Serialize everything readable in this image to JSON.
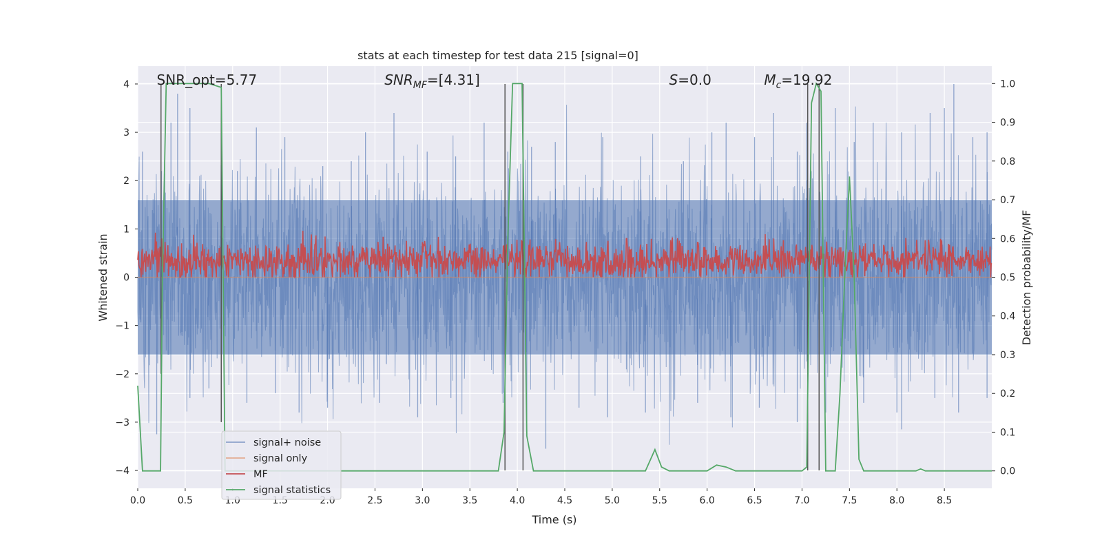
{
  "chart_data": {
    "type": "line",
    "title": "stats at each timestep for test data 215 [signal=0]",
    "xlabel": "Time (s)",
    "ylabel": "Whitened strain",
    "y2label": "Detection probability/MF",
    "xlim": [
      0,
      9.0
    ],
    "ylim": [
      -4.37,
      4.37
    ],
    "y2lim": [
      -0.045,
      1.045
    ],
    "x_ticks": [
      0.0,
      0.5,
      1.0,
      1.5,
      2.0,
      2.5,
      3.0,
      3.5,
      4.0,
      4.5,
      5.0,
      5.5,
      6.0,
      6.5,
      7.0,
      7.5,
      8.0,
      8.5
    ],
    "x_tick_labels": [
      "0.0",
      "0.5",
      "1.0",
      "1.5",
      "2.0",
      "2.5",
      "3.0",
      "3.5",
      "4.0",
      "4.5",
      "5.0",
      "5.5",
      "6.0",
      "6.5",
      "7.0",
      "7.5",
      "8.0",
      "8.5"
    ],
    "y_ticks": [
      4,
      3,
      2,
      1,
      0,
      -1,
      -2,
      -3,
      -4
    ],
    "y_tick_labels": [
      "4",
      "3",
      "2",
      "1",
      "0",
      "−1",
      "−2",
      "−3",
      "−4"
    ],
    "y2_ticks": [
      1.0,
      0.9,
      0.8,
      0.7,
      0.6,
      0.5,
      0.4,
      0.3,
      0.2,
      0.1,
      0.0
    ],
    "y2_tick_labels": [
      "1.0",
      "0.9",
      "0.8",
      "0.7",
      "0.6",
      "0.5",
      "0.4",
      "0.3",
      "0.2",
      "0.1",
      "0.0"
    ],
    "grid": true,
    "legend_position": "lower-left",
    "annotations": [
      {
        "text": "SNR_opt=5.77",
        "x": 0.2,
        "y": 4.1
      },
      {
        "text": "SNR_MF=[4.31]",
        "x": 2.6,
        "y": 4.1
      },
      {
        "text": "S=0.0",
        "x": 5.6,
        "y": 4.1
      },
      {
        "text": "M_c=19.92",
        "x": 6.6,
        "y": 4.1
      }
    ],
    "series": [
      {
        "name": "signal+ noise",
        "axis": "left",
        "color": "#4c72b0",
        "style": "noise-band",
        "envelope": {
          "t": [
            0.0,
            9.0
          ],
          "upper": 4.0,
          "lower": -3.6,
          "band": [
            -1.6,
            1.6
          ]
        },
        "peaks": [
          [
            0.05,
            2.6
          ],
          [
            0.25,
            2.2
          ],
          [
            0.35,
            3.2
          ],
          [
            0.42,
            3.8
          ],
          [
            0.55,
            3.5
          ],
          [
            0.88,
            2.7
          ],
          [
            1.05,
            2.2
          ],
          [
            1.25,
            3.1
          ],
          [
            1.55,
            2.9
          ],
          [
            1.95,
            2.3
          ],
          [
            2.25,
            2.4
          ],
          [
            2.4,
            3.0
          ],
          [
            2.7,
            3.4
          ],
          [
            3.05,
            2.6
          ],
          [
            3.35,
            2.5
          ],
          [
            3.65,
            3.2
          ],
          [
            3.9,
            2.6
          ],
          [
            4.15,
            2.7
          ],
          [
            4.4,
            2.8
          ],
          [
            4.9,
            2.9
          ],
          [
            5.3,
            2.5
          ],
          [
            5.75,
            2.4
          ],
          [
            6.05,
            3.0
          ],
          [
            6.2,
            3.2
          ],
          [
            6.5,
            2.9
          ],
          [
            6.7,
            3.4
          ],
          [
            6.95,
            2.6
          ],
          [
            7.05,
            3.2
          ],
          [
            7.35,
            3.5
          ],
          [
            7.55,
            2.8
          ],
          [
            7.75,
            3.2
          ],
          [
            8.05,
            3.0
          ],
          [
            8.35,
            3.4
          ],
          [
            8.5,
            3.5
          ],
          [
            8.6,
            4.0
          ],
          [
            8.8,
            2.9
          ],
          [
            8.95,
            3.0
          ]
        ],
        "troughs": [
          [
            0.2,
            -3.25
          ],
          [
            0.55,
            -2.5
          ],
          [
            0.75,
            -2.3
          ],
          [
            1.15,
            -2.6
          ],
          [
            1.45,
            -2.4
          ],
          [
            1.7,
            -2.8
          ],
          [
            2.0,
            -2.7
          ],
          [
            2.55,
            -2.6
          ],
          [
            2.95,
            -2.9
          ],
          [
            3.3,
            -2.5
          ],
          [
            3.85,
            -2.6
          ],
          [
            4.1,
            -3.0
          ],
          [
            4.3,
            -3.55
          ],
          [
            4.65,
            -2.7
          ],
          [
            4.95,
            -2.9
          ],
          [
            5.35,
            -2.8
          ],
          [
            5.9,
            -2.6
          ],
          [
            6.25,
            -2.9
          ],
          [
            6.55,
            -2.7
          ],
          [
            6.95,
            -3.0
          ],
          [
            7.25,
            -2.8
          ],
          [
            7.65,
            -2.6
          ],
          [
            8.0,
            -2.8
          ],
          [
            8.05,
            -3.15
          ],
          [
            8.4,
            -2.5
          ],
          [
            8.65,
            -2.8
          ],
          [
            8.95,
            -2.5
          ]
        ]
      },
      {
        "name": "signal only",
        "axis": "left",
        "color": "#dd8452",
        "x": [
          0.0,
          9.0
        ],
        "y": [
          0.0,
          0.0
        ]
      },
      {
        "name": "MF",
        "axis": "right",
        "color": "#c44e52",
        "style": "noisy-line",
        "baseline": 0.545,
        "amplitude": 0.04,
        "peaks": [
          [
            0.25,
            0.6
          ],
          [
            0.88,
            0.52
          ],
          [
            1.35,
            0.58
          ],
          [
            5.15,
            0.6
          ],
          [
            5.9,
            0.59
          ],
          [
            6.7,
            0.6
          ],
          [
            6.78,
            0.58
          ]
        ]
      },
      {
        "name": "signal statistics",
        "axis": "right",
        "color": "#55a868",
        "x": [
          0.0,
          0.05,
          0.1,
          0.15,
          0.2,
          0.24,
          0.26,
          0.3,
          0.35,
          0.45,
          0.6,
          0.75,
          0.88,
          0.9,
          0.92,
          0.95,
          1.0,
          1.5,
          2.0,
          2.5,
          3.0,
          3.5,
          3.8,
          3.86,
          3.9,
          3.95,
          4.0,
          4.05,
          4.1,
          4.17,
          4.3,
          5.0,
          5.35,
          5.45,
          5.52,
          5.6,
          6.0,
          6.1,
          6.2,
          6.3,
          6.5,
          7.0,
          7.05,
          7.1,
          7.15,
          7.2,
          7.25,
          7.3,
          7.35,
          7.4,
          7.45,
          7.5,
          7.55,
          7.6,
          7.65,
          7.8,
          8.0,
          8.2,
          8.25,
          8.3,
          8.5,
          9.0
        ],
        "y": [
          0.22,
          0.0,
          0.0,
          0.0,
          0.0,
          0.0,
          0.5,
          1.0,
          1.0,
          1.0,
          1.0,
          1.0,
          0.99,
          0.5,
          0.0,
          0.0,
          0.0,
          0.0,
          0.0,
          0.0,
          0.0,
          0.0,
          0.0,
          0.1,
          0.6,
          1.0,
          1.0,
          1.0,
          0.09,
          0.0,
          0.0,
          0.0,
          0.0,
          0.055,
          0.01,
          0.0,
          0.0,
          0.015,
          0.01,
          0.0,
          0.0,
          0.0,
          0.01,
          0.95,
          1.0,
          0.98,
          0.0,
          0.0,
          0.0,
          0.2,
          0.5,
          0.76,
          0.5,
          0.03,
          0.0,
          0.0,
          0.0,
          0.0,
          0.005,
          0.0,
          0.0,
          0.0
        ]
      }
    ],
    "vertical_lines": [
      {
        "x": 0.245,
        "y_range": [
          -2.0,
          4.0
        ]
      },
      {
        "x": 0.88,
        "y_range": [
          -3.0,
          4.0
        ]
      },
      {
        "x": 3.87,
        "y_range": [
          -4.0,
          4.0
        ]
      },
      {
        "x": 4.06,
        "y_range": [
          -4.0,
          4.0
        ]
      },
      {
        "x": 7.06,
        "y_range": [
          -4.0,
          4.0
        ]
      },
      {
        "x": 7.18,
        "y_range": [
          -4.0,
          4.0
        ]
      }
    ]
  },
  "colors": {
    "plot_background": "#eaeaf2",
    "grid": "#ffffff",
    "vertical_line": "#555555"
  }
}
